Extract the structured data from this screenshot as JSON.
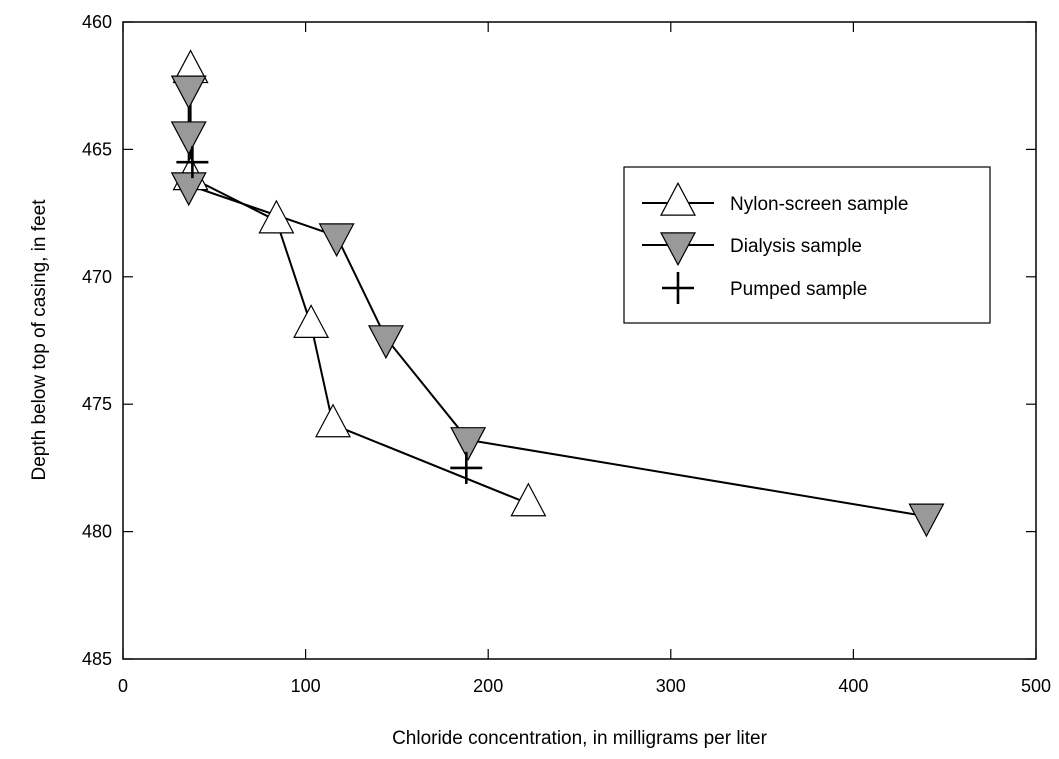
{
  "chart_data": {
    "type": "line",
    "title": "",
    "xlabel": "Chloride concentration, in milligrams per liter",
    "ylabel": "Depth below top of casing, in feet",
    "xlim": [
      0,
      500
    ],
    "ylim": [
      460,
      485
    ],
    "y_inverted": true,
    "xticks": [
      0,
      100,
      200,
      300,
      400,
      500
    ],
    "yticks": [
      460,
      465,
      470,
      475,
      480,
      485
    ],
    "xtick_labels": [
      "0",
      "100",
      "200",
      "300",
      "400",
      "500"
    ],
    "ytick_labels": [
      "460",
      "465",
      "470",
      "475",
      "480",
      "485"
    ],
    "grid": false,
    "legend_position": "upper-right",
    "series": [
      {
        "name": "Nylon-screen sample",
        "marker": "triangle-up",
        "marker_fill": "#ffffff",
        "points": [
          [
            37,
            461.9
          ],
          [
            37,
            466.1
          ],
          [
            84,
            467.8
          ],
          [
            103,
            471.9
          ],
          [
            115,
            475.8
          ],
          [
            222,
            478.9
          ]
        ]
      },
      {
        "name": "Dialysis sample",
        "marker": "triangle-down",
        "marker_fill": "#999999",
        "points": [
          [
            36,
            462.6
          ],
          [
            36,
            464.4
          ],
          [
            36,
            466.4
          ],
          [
            117,
            468.4
          ],
          [
            144,
            472.4
          ],
          [
            189,
            476.4
          ],
          [
            440,
            479.4
          ]
        ]
      },
      {
        "name": "Pumped sample",
        "marker": "plus",
        "marker_fill": "#000000",
        "points": [
          [
            38,
            465.5
          ],
          [
            188,
            477.5
          ]
        ]
      }
    ]
  }
}
